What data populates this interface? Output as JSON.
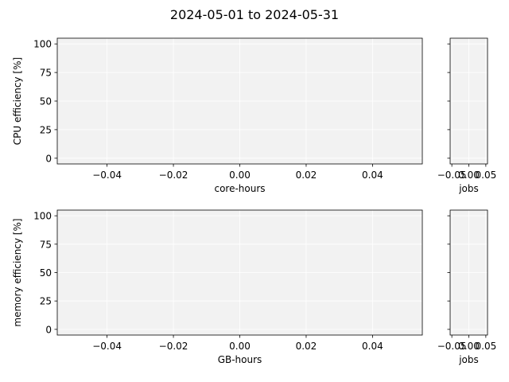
{
  "figure_title": "2024-05-01 to 2024-05-31",
  "chart_data": [
    {
      "type": "scatter",
      "panel": "cpu-main",
      "title": "",
      "xlabel": "core-hours",
      "ylabel": "CPU efficiency [%]",
      "xlim": [
        -0.055,
        0.055
      ],
      "ylim": [
        -5,
        105
      ],
      "xticks": [
        -0.04,
        -0.02,
        0.0,
        0.02,
        0.04
      ],
      "xtick_labels": [
        "−0.04",
        "−0.02",
        "0.00",
        "0.02",
        "0.04"
      ],
      "yticks": [
        0,
        25,
        50,
        75,
        100
      ],
      "ytick_labels": [
        "0",
        "25",
        "50",
        "75",
        "100"
      ],
      "grid": true,
      "background": "#f2f2f2",
      "series": [
        {
          "x": [],
          "y": []
        }
      ]
    },
    {
      "type": "bar",
      "panel": "cpu-side",
      "title": "",
      "xlabel": "jobs",
      "ylabel": "",
      "xlim": [
        -0.055,
        0.055
      ],
      "ylim": [
        -5,
        105
      ],
      "xticks": [
        -0.05,
        0.0,
        0.05
      ],
      "xtick_labels": [
        "−0.05",
        "0.00",
        "0.05"
      ],
      "yticks": [
        0,
        25,
        50,
        75,
        100
      ],
      "ytick_labels": [
        "",
        "",
        "",
        "",
        ""
      ],
      "grid": true,
      "background": "#f2f2f2",
      "series": [
        {
          "values": []
        }
      ]
    },
    {
      "type": "scatter",
      "panel": "mem-main",
      "title": "",
      "xlabel": "GB-hours",
      "ylabel": "memory efficiency [%]",
      "xlim": [
        -0.055,
        0.055
      ],
      "ylim": [
        -5,
        105
      ],
      "xticks": [
        -0.04,
        -0.02,
        0.0,
        0.02,
        0.04
      ],
      "xtick_labels": [
        "−0.04",
        "−0.02",
        "0.00",
        "0.02",
        "0.04"
      ],
      "yticks": [
        0,
        25,
        50,
        75,
        100
      ],
      "ytick_labels": [
        "0",
        "25",
        "50",
        "75",
        "100"
      ],
      "grid": true,
      "background": "#f2f2f2",
      "series": [
        {
          "x": [],
          "y": []
        }
      ]
    },
    {
      "type": "bar",
      "panel": "mem-side",
      "title": "",
      "xlabel": "jobs",
      "ylabel": "",
      "xlim": [
        -0.055,
        0.055
      ],
      "ylim": [
        -5,
        105
      ],
      "xticks": [
        -0.05,
        0.0,
        0.05
      ],
      "xtick_labels": [
        "−0.05",
        "0.00",
        "0.05"
      ],
      "yticks": [
        0,
        25,
        50,
        75,
        100
      ],
      "ytick_labels": [
        "",
        "",
        "",
        "",
        ""
      ],
      "grid": true,
      "background": "#f2f2f2",
      "series": [
        {
          "values": []
        }
      ]
    }
  ]
}
